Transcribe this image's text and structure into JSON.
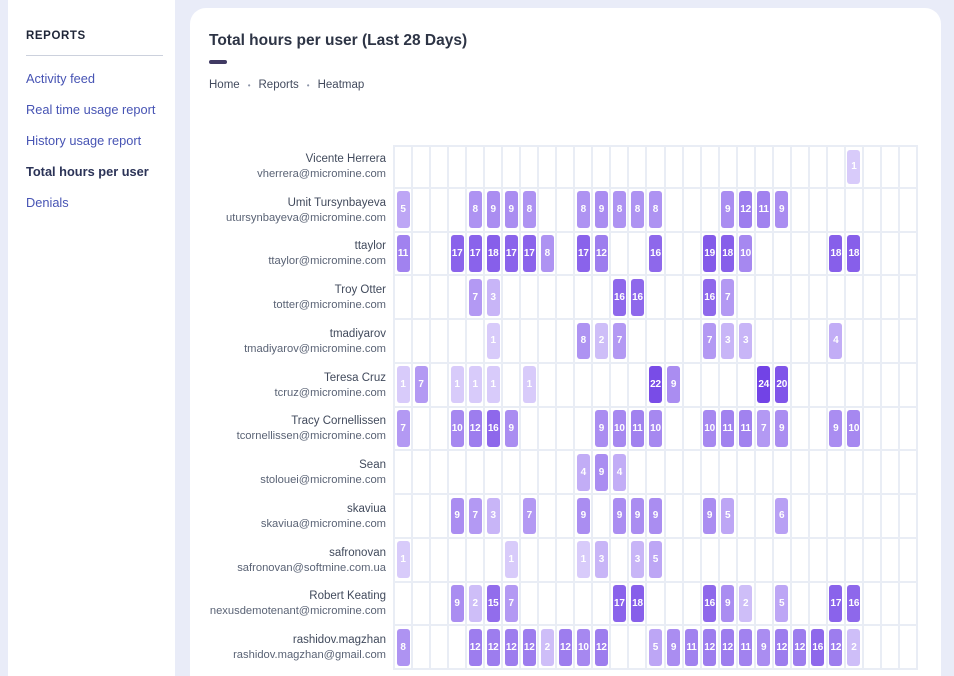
{
  "sidebar": {
    "header": "REPORTS",
    "items": [
      {
        "label": "Activity feed",
        "active": false
      },
      {
        "label": "Real time usage report",
        "active": false
      },
      {
        "label": "History usage report",
        "active": false
      },
      {
        "label": "Total hours per user",
        "active": true
      },
      {
        "label": "Denials",
        "active": false
      }
    ]
  },
  "main": {
    "title": "Total hours per user (Last 28 Days)",
    "breadcrumb": [
      "Home",
      "Reports",
      "Heatmap"
    ]
  },
  "colors": {
    "page_background": "#e9ecf8",
    "card_background": "#ffffff",
    "accent_bar": "#403a63",
    "sidebar_link": "#4754b4",
    "sidebar_active": "#2b3357",
    "grid_line": "#e9edf5",
    "heat_min_color": "#d8cbfa",
    "heat_max_color": "#7243e6"
  },
  "chart_data": {
    "type": "heatmap",
    "title": "Total hours per user (Last 28 Days)",
    "columns": 29,
    "value_range": {
      "min": 1,
      "max": 24
    },
    "legend_position": "none",
    "rows": [
      {
        "name": "Vicente Herrera",
        "email": "vherrera@micromine.com",
        "cells": {
          "26": 1
        }
      },
      {
        "name": "Umit Tursynbayeva",
        "email": "utursynbayeva@micromine.com",
        "cells": {
          "1": 5,
          "5": 8,
          "6": 9,
          "7": 9,
          "8": 8,
          "11": 8,
          "12": 9,
          "13": 8,
          "14": 8,
          "15": 8,
          "19": 9,
          "20": 12,
          "21": 11,
          "22": 9
        }
      },
      {
        "name": "ttaylor",
        "email": "ttaylor@micromine.com",
        "cells": {
          "1": 11,
          "4": 17,
          "5": 17,
          "6": 18,
          "7": 17,
          "8": 17,
          "9": 8,
          "11": 17,
          "12": 12,
          "15": 16,
          "18": 19,
          "19": 18,
          "20": 10,
          "25": 18,
          "26": 18
        }
      },
      {
        "name": "Troy Otter",
        "email": "totter@micromine.com",
        "cells": {
          "5": 7,
          "6": 3,
          "13": 16,
          "14": 16,
          "18": 16,
          "19": 7
        }
      },
      {
        "name": "tmadiyarov",
        "email": "tmadiyarov@micromine.com",
        "cells": {
          "6": 1,
          "11": 8,
          "12": 2,
          "13": 7,
          "18": 7,
          "19": 3,
          "20": 3,
          "25": 4
        }
      },
      {
        "name": "Teresa Cruz",
        "email": "tcruz@micromine.com",
        "cells": {
          "1": 1,
          "2": 7,
          "4": 1,
          "5": 1,
          "6": 1,
          "8": 1,
          "15": 22,
          "16": 9,
          "21": 24,
          "22": 20
        }
      },
      {
        "name": "Tracy Cornellissen",
        "email": "tcornellissen@micromine.com",
        "cells": {
          "1": 7,
          "4": 10,
          "5": 12,
          "6": 16,
          "7": 9,
          "12": 9,
          "13": 10,
          "14": 11,
          "15": 10,
          "18": 10,
          "19": 11,
          "20": 11,
          "21": 7,
          "22": 9,
          "25": 9,
          "26": 10
        }
      },
      {
        "name": "Sean",
        "email": "stolouei@micromine.com",
        "cells": {
          "11": 4,
          "12": 9,
          "13": 4
        }
      },
      {
        "name": "skaviua",
        "email": "skaviua@micromine.com",
        "cells": {
          "4": 9,
          "5": 7,
          "6": 3,
          "8": 7,
          "11": 9,
          "13": 9,
          "14": 9,
          "15": 9,
          "18": 9,
          "19": 5,
          "22": 6
        }
      },
      {
        "name": "safronovan",
        "email": "safronovan@softmine.com.ua",
        "cells": {
          "1": 1,
          "7": 1,
          "11": 1,
          "12": 3,
          "14": 3,
          "15": 5
        }
      },
      {
        "name": "Robert Keating",
        "email": "nexusdemotenant@micromine.com",
        "cells": {
          "4": 9,
          "5": 2,
          "6": 15,
          "7": 7,
          "13": 17,
          "14": 18,
          "18": 16,
          "19": 9,
          "20": 2,
          "22": 5,
          "25": 17,
          "26": 16
        }
      },
      {
        "name": "rashidov.magzhan",
        "email": "rashidov.magzhan@gmail.com",
        "cells": {
          "1": 8,
          "5": 12,
          "6": 12,
          "7": 12,
          "8": 12,
          "9": 2,
          "10": 12,
          "11": 10,
          "12": 12,
          "15": 5,
          "16": 9,
          "17": 11,
          "18": 12,
          "19": 12,
          "20": 11,
          "21": 9,
          "22": 12,
          "23": 12,
          "24": 16,
          "25": 12,
          "26": 2
        }
      }
    ]
  }
}
